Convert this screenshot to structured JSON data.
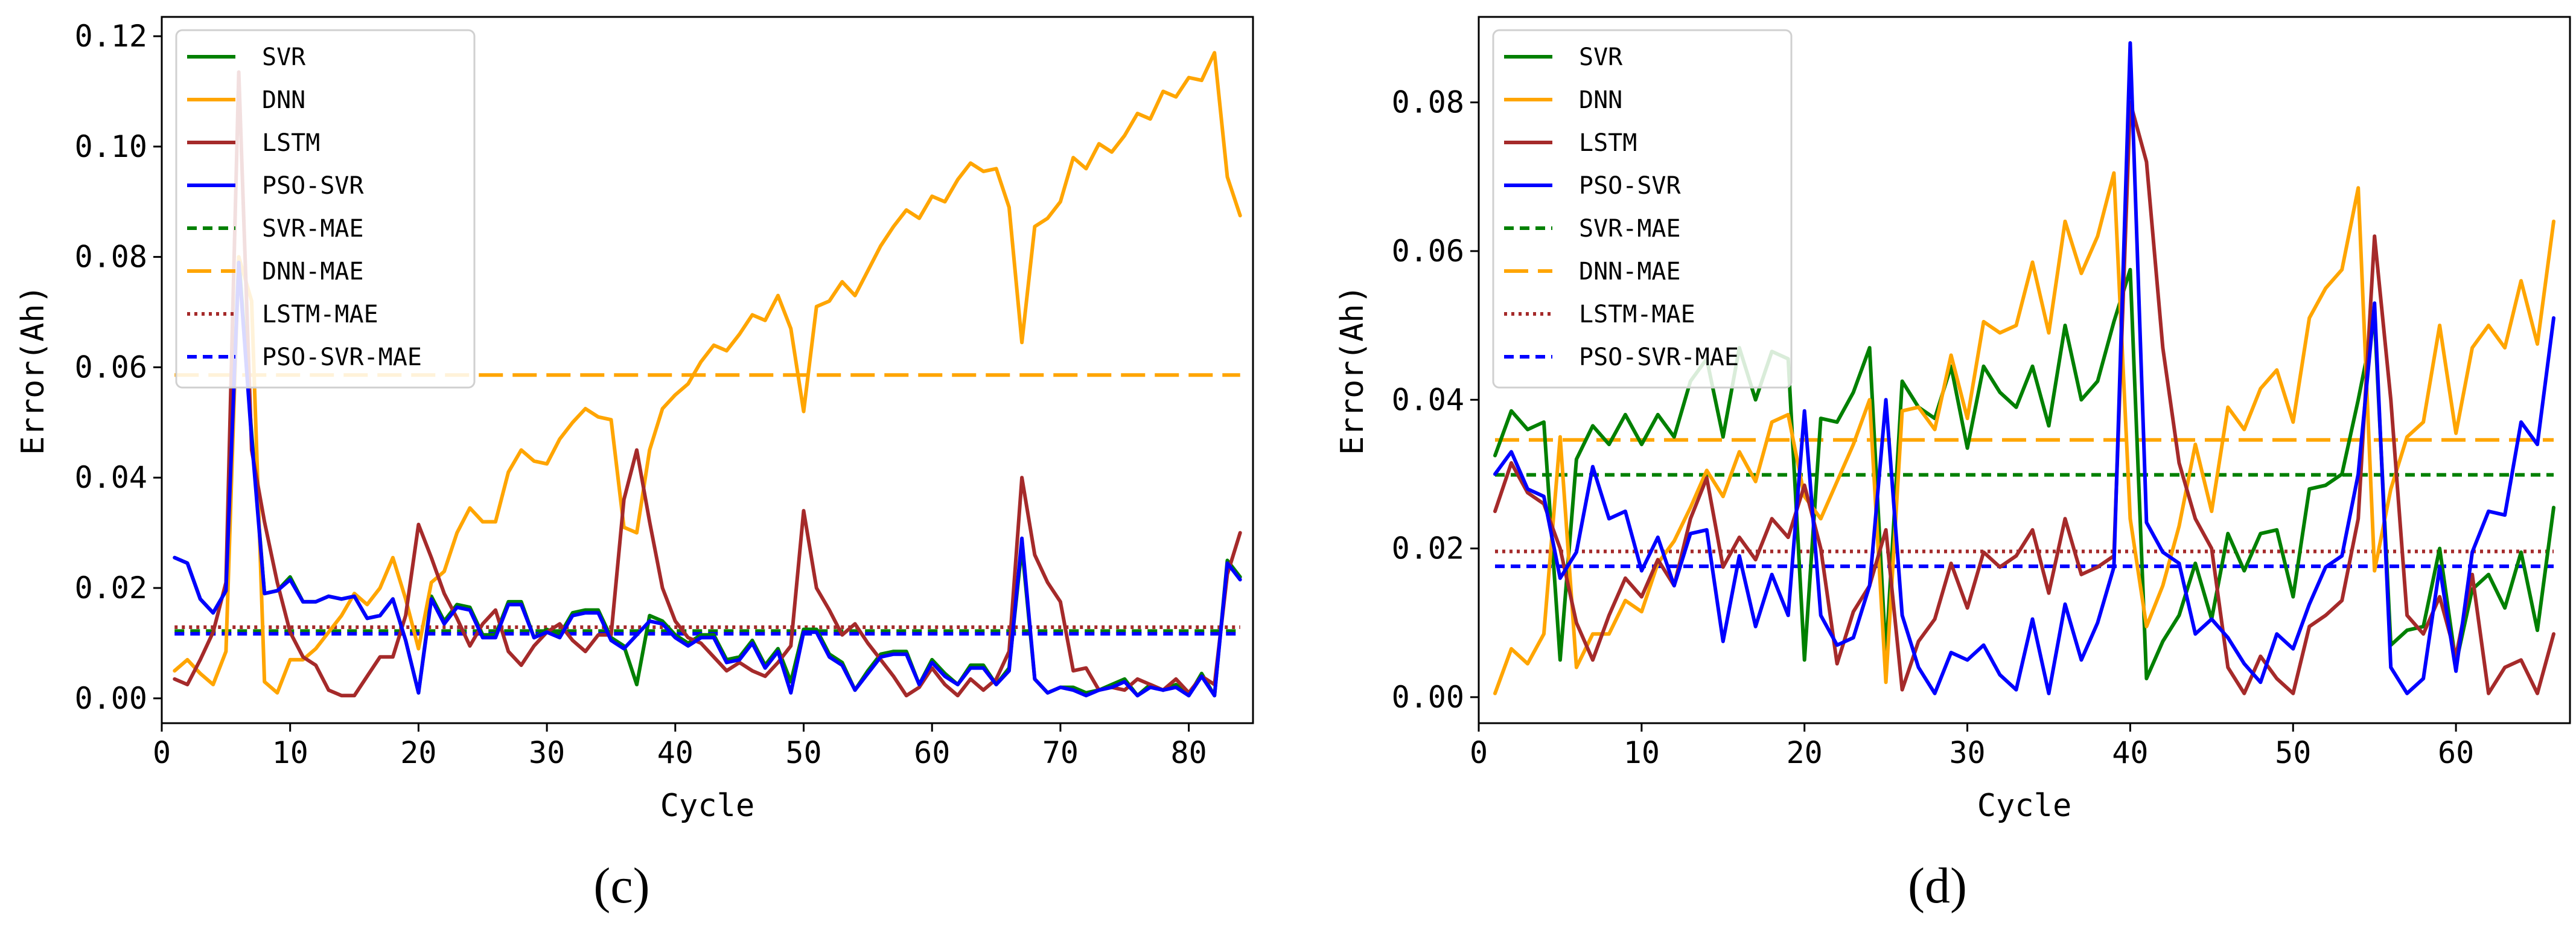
{
  "chart_data": [
    {
      "type": "line",
      "panel_label": "(c)",
      "xlabel": "Cycle",
      "ylabel": "Error(Ah)",
      "xlim": [
        0,
        85
      ],
      "ylim": [
        -0.0045,
        0.1235
      ],
      "xticks": [
        0,
        10,
        20,
        30,
        40,
        50,
        60,
        70,
        80
      ],
      "yticks": [
        0.0,
        0.02,
        0.04,
        0.06,
        0.08,
        0.1,
        0.12
      ],
      "ytick_labels": [
        "0.00",
        "0.02",
        "0.04",
        "0.06",
        "0.08",
        "0.10",
        "0.12"
      ],
      "legend_position": "upper-left",
      "x_start": 1,
      "series": [
        {
          "name": "SVR",
          "style": "solid",
          "color": "#008000",
          "values": [
            0.0255,
            0.0245,
            0.018,
            0.0155,
            0.0195,
            0.08,
            0.048,
            0.019,
            0.0195,
            0.022,
            0.0175,
            0.0175,
            0.0185,
            0.018,
            0.0185,
            0.0145,
            0.015,
            0.018,
            0.0105,
            0.001,
            0.0185,
            0.014,
            0.017,
            0.0165,
            0.0115,
            0.0115,
            0.0175,
            0.0175,
            0.011,
            0.0125,
            0.0115,
            0.0155,
            0.016,
            0.016,
            0.011,
            0.0095,
            0.0025,
            0.015,
            0.014,
            0.0115,
            0.01,
            0.0115,
            0.0115,
            0.007,
            0.0075,
            0.0105,
            0.006,
            0.009,
            0.003,
            0.0125,
            0.0125,
            0.008,
            0.0065,
            0.0015,
            0.005,
            0.008,
            0.0085,
            0.0085,
            0.0025,
            0.007,
            0.0045,
            0.0025,
            0.006,
            0.006,
            0.0025,
            0.0055,
            0.0275,
            0.0035,
            0.001,
            0.002,
            0.002,
            0.001,
            0.0015,
            0.0025,
            0.0035,
            0.0005,
            0.0025,
            0.0015,
            0.0025,
            0.0005,
            0.0045,
            0.0005,
            0.025,
            0.022
          ]
        },
        {
          "name": "DNN",
          "style": "solid",
          "color": "#FFA500",
          "values": [
            0.005,
            0.007,
            0.0045,
            0.0025,
            0.0085,
            0.08,
            0.072,
            0.003,
            0.001,
            0.007,
            0.007,
            0.009,
            0.012,
            0.015,
            0.019,
            0.017,
            0.02,
            0.0255,
            0.018,
            0.009,
            0.021,
            0.023,
            0.03,
            0.0345,
            0.032,
            0.032,
            0.041,
            0.045,
            0.043,
            0.0425,
            0.047,
            0.05,
            0.0525,
            0.051,
            0.0505,
            0.031,
            0.03,
            0.045,
            0.0525,
            0.055,
            0.057,
            0.061,
            0.064,
            0.063,
            0.066,
            0.0695,
            0.0685,
            0.073,
            0.067,
            0.052,
            0.071,
            0.072,
            0.0755,
            0.073,
            0.0775,
            0.082,
            0.0855,
            0.0885,
            0.087,
            0.091,
            0.09,
            0.094,
            0.097,
            0.0955,
            0.096,
            0.089,
            0.0645,
            0.0855,
            0.087,
            0.09,
            0.098,
            0.096,
            0.1005,
            0.099,
            0.102,
            0.106,
            0.105,
            0.11,
            0.109,
            0.1125,
            0.112,
            0.117,
            0.0945,
            0.0875
          ]
        },
        {
          "name": "LSTM",
          "style": "solid",
          "color": "#A52A2A",
          "values": [
            0.0035,
            0.0025,
            0.007,
            0.012,
            0.021,
            0.1135,
            0.045,
            0.032,
            0.021,
            0.012,
            0.0075,
            0.006,
            0.0015,
            0.0005,
            0.0005,
            0.004,
            0.0075,
            0.0075,
            0.015,
            0.0315,
            0.0255,
            0.019,
            0.0145,
            0.0095,
            0.0135,
            0.016,
            0.0085,
            0.006,
            0.0095,
            0.012,
            0.0135,
            0.0105,
            0.0085,
            0.0115,
            0.0115,
            0.036,
            0.045,
            0.032,
            0.02,
            0.014,
            0.011,
            0.01,
            0.0075,
            0.005,
            0.0065,
            0.005,
            0.004,
            0.0065,
            0.0095,
            0.034,
            0.02,
            0.016,
            0.0115,
            0.0135,
            0.01,
            0.007,
            0.004,
            0.0005,
            0.002,
            0.0055,
            0.0025,
            0.0005,
            0.0035,
            0.0015,
            0.0035,
            0.0085,
            0.04,
            0.026,
            0.021,
            0.0175,
            0.005,
            0.0055,
            0.0015,
            0.002,
            0.0015,
            0.0035,
            0.0025,
            0.0015,
            0.0035,
            0.001,
            0.004,
            0.0025,
            0.0225,
            0.03
          ]
        },
        {
          "name": "PSO-SVR",
          "style": "solid",
          "color": "#0000FF",
          "values": [
            0.0255,
            0.0245,
            0.018,
            0.0155,
            0.0195,
            0.079,
            0.047,
            0.019,
            0.0195,
            0.0215,
            0.0175,
            0.0175,
            0.0185,
            0.018,
            0.0185,
            0.0145,
            0.015,
            0.018,
            0.0105,
            0.001,
            0.018,
            0.0135,
            0.0165,
            0.016,
            0.011,
            0.011,
            0.017,
            0.017,
            0.011,
            0.012,
            0.011,
            0.015,
            0.0155,
            0.0155,
            0.0105,
            0.009,
            0.0115,
            0.014,
            0.0135,
            0.011,
            0.0095,
            0.011,
            0.011,
            0.0065,
            0.007,
            0.01,
            0.0055,
            0.0085,
            0.001,
            0.012,
            0.012,
            0.0075,
            0.006,
            0.0015,
            0.0045,
            0.0075,
            0.008,
            0.008,
            0.0025,
            0.0065,
            0.004,
            0.0025,
            0.0055,
            0.0055,
            0.0025,
            0.005,
            0.029,
            0.0035,
            0.001,
            0.002,
            0.0015,
            0.0005,
            0.0015,
            0.002,
            0.003,
            0.0005,
            0.002,
            0.0015,
            0.002,
            0.0005,
            0.004,
            0.0005,
            0.0245,
            0.0215
          ]
        },
        {
          "name": "SVR-MAE",
          "style": "dashed",
          "color": "#008000",
          "mae": 0.0122
        },
        {
          "name": "DNN-MAE",
          "style": "longdash",
          "color": "#FFA500",
          "mae": 0.0586
        },
        {
          "name": "LSTM-MAE",
          "style": "dotted",
          "color": "#A52A2A",
          "mae": 0.0129
        },
        {
          "name": "PSO-SVR-MAE",
          "style": "dashed",
          "color": "#0000FF",
          "mae": 0.0117
        }
      ]
    },
    {
      "type": "line",
      "panel_label": "(d)",
      "xlabel": "Cycle",
      "ylabel": "Error(Ah)",
      "xlim": [
        0,
        67
      ],
      "ylim": [
        -0.0035,
        0.0915
      ],
      "xticks": [
        0,
        10,
        20,
        30,
        40,
        50,
        60
      ],
      "yticks": [
        0.0,
        0.02,
        0.04,
        0.06,
        0.08
      ],
      "ytick_labels": [
        "0.00",
        "0.02",
        "0.04",
        "0.06",
        "0.08"
      ],
      "legend_position": "upper-left",
      "x_start": 1,
      "series": [
        {
          "name": "SVR",
          "style": "solid",
          "color": "#008000",
          "values": [
            0.0325,
            0.0385,
            0.036,
            0.037,
            0.005,
            0.032,
            0.0365,
            0.034,
            0.038,
            0.034,
            0.038,
            0.035,
            0.0425,
            0.0455,
            0.035,
            0.047,
            0.04,
            0.0465,
            0.0455,
            0.005,
            0.0375,
            0.037,
            0.041,
            0.047,
            0.0055,
            0.0425,
            0.039,
            0.0375,
            0.0445,
            0.0335,
            0.0445,
            0.041,
            0.039,
            0.0445,
            0.0365,
            0.05,
            0.04,
            0.0425,
            0.0505,
            0.0575,
            0.0025,
            0.0075,
            0.011,
            0.018,
            0.0105,
            0.022,
            0.017,
            0.022,
            0.0225,
            0.0135,
            0.028,
            0.0285,
            0.03,
            0.04,
            0.051,
            0.007,
            0.009,
            0.0095,
            0.02,
            0.0045,
            0.0145,
            0.0165,
            0.012,
            0.0195,
            0.009,
            0.0255
          ]
        },
        {
          "name": "DNN",
          "style": "solid",
          "color": "#FFA500",
          "values": [
            0.0005,
            0.0065,
            0.0045,
            0.0085,
            0.035,
            0.004,
            0.0085,
            0.0085,
            0.013,
            0.0115,
            0.018,
            0.021,
            0.0255,
            0.0305,
            0.027,
            0.033,
            0.029,
            0.037,
            0.038,
            0.027,
            0.024,
            0.029,
            0.034,
            0.04,
            0.002,
            0.0385,
            0.039,
            0.036,
            0.046,
            0.0375,
            0.0505,
            0.049,
            0.05,
            0.0585,
            0.049,
            0.064,
            0.057,
            0.062,
            0.0705,
            0.024,
            0.0095,
            0.015,
            0.023,
            0.034,
            0.025,
            0.039,
            0.036,
            0.0415,
            0.044,
            0.037,
            0.051,
            0.055,
            0.0575,
            0.0685,
            0.017,
            0.028,
            0.035,
            0.037,
            0.05,
            0.0355,
            0.047,
            0.05,
            0.047,
            0.056,
            0.0475,
            0.064
          ]
        },
        {
          "name": "LSTM",
          "style": "solid",
          "color": "#A52A2A",
          "values": [
            0.025,
            0.0315,
            0.0275,
            0.026,
            0.02,
            0.01,
            0.005,
            0.011,
            0.016,
            0.0135,
            0.0185,
            0.015,
            0.024,
            0.0295,
            0.0175,
            0.0215,
            0.0185,
            0.024,
            0.0215,
            0.0285,
            0.02,
            0.0045,
            0.0115,
            0.015,
            0.0225,
            0.001,
            0.0075,
            0.0105,
            0.018,
            0.012,
            0.0195,
            0.0175,
            0.019,
            0.0225,
            0.014,
            0.024,
            0.0165,
            0.0175,
            0.019,
            0.08,
            0.072,
            0.047,
            0.0315,
            0.024,
            0.02,
            0.004,
            0.0005,
            0.0055,
            0.0025,
            0.0005,
            0.0095,
            0.011,
            0.013,
            0.024,
            0.062,
            0.04,
            0.011,
            0.0085,
            0.0135,
            0.0055,
            0.0165,
            0.0005,
            0.004,
            0.005,
            0.0005,
            0.0085
          ]
        },
        {
          "name": "PSO-SVR",
          "style": "solid",
          "color": "#0000FF",
          "values": [
            0.03,
            0.033,
            0.028,
            0.027,
            0.016,
            0.0195,
            0.031,
            0.024,
            0.025,
            0.017,
            0.0215,
            0.015,
            0.022,
            0.0225,
            0.0075,
            0.019,
            0.0095,
            0.0165,
            0.011,
            0.0385,
            0.011,
            0.007,
            0.008,
            0.015,
            0.04,
            0.011,
            0.004,
            0.0005,
            0.006,
            0.005,
            0.007,
            0.003,
            0.001,
            0.0105,
            0.0005,
            0.0125,
            0.005,
            0.01,
            0.0175,
            0.088,
            0.0235,
            0.0195,
            0.018,
            0.0085,
            0.0105,
            0.008,
            0.0045,
            0.002,
            0.0085,
            0.0065,
            0.0125,
            0.0175,
            0.019,
            0.03,
            0.053,
            0.004,
            0.0005,
            0.0025,
            0.0175,
            0.0035,
            0.0195,
            0.025,
            0.0245,
            0.037,
            0.034,
            0.051
          ]
        },
        {
          "name": "SVR-MAE",
          "style": "dashed",
          "color": "#008000",
          "mae": 0.0299
        },
        {
          "name": "DNN-MAE",
          "style": "longdash",
          "color": "#FFA500",
          "mae": 0.0346
        },
        {
          "name": "LSTM-MAE",
          "style": "dotted",
          "color": "#A52A2A",
          "mae": 0.0196
        },
        {
          "name": "PSO-SVR-MAE",
          "style": "dashed",
          "color": "#0000FF",
          "mae": 0.0176
        }
      ]
    }
  ]
}
